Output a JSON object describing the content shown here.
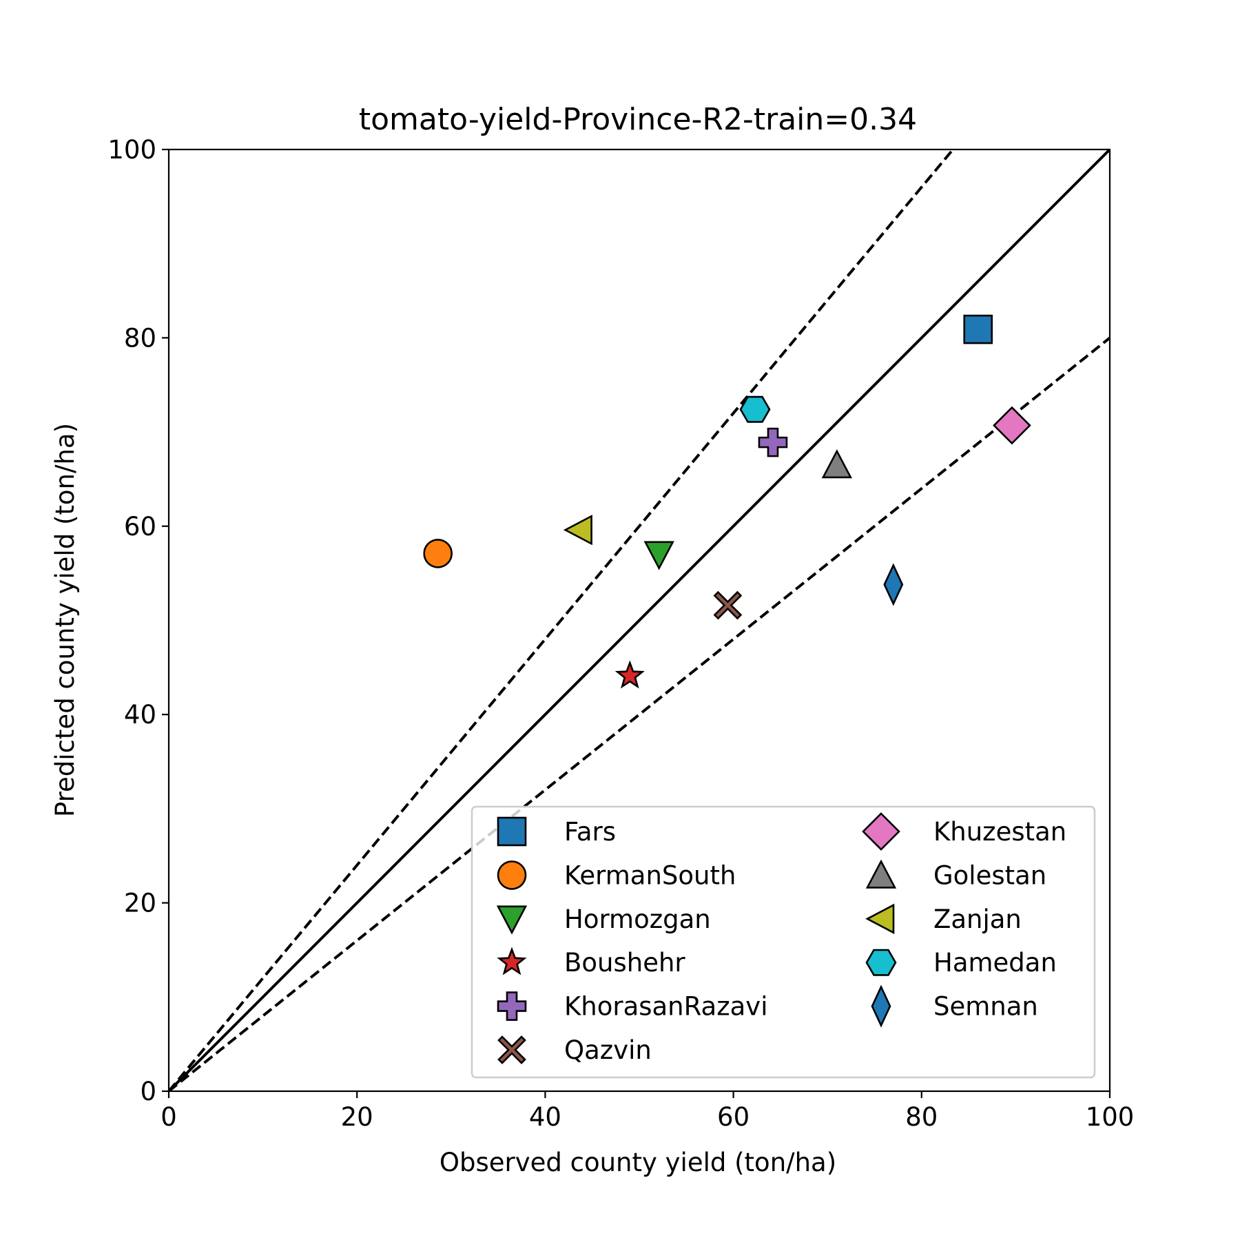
{
  "chart_data": {
    "type": "scatter",
    "title": "tomato-yield-Province-R2-train=0.34",
    "xlabel": "Observed county yield (ton/ha)",
    "ylabel": "Predicted county yield (ton/ha)",
    "xlim": [
      0,
      100
    ],
    "ylim": [
      0,
      100
    ],
    "xticks": [
      "0",
      "20",
      "40",
      "60",
      "80",
      "100"
    ],
    "yticks": [
      "0",
      "20",
      "40",
      "60",
      "80",
      "100"
    ],
    "grid": false,
    "legend_position": "lower-right",
    "legend_columns": 2,
    "reference_lines": [
      {
        "style": "solid",
        "slope": 1.0
      },
      {
        "style": "dashed",
        "slope": 1.2
      },
      {
        "style": "dashed",
        "slope": 0.8
      }
    ],
    "series": [
      {
        "name": "Fars",
        "x": 86.0,
        "y": 80.9,
        "marker": "square",
        "color": "#1f77b4"
      },
      {
        "name": "KermanSouth",
        "x": 28.6,
        "y": 57.1,
        "marker": "circle",
        "color": "#ff7f0e"
      },
      {
        "name": "Hormozgan",
        "x": 52.1,
        "y": 57.0,
        "marker": "triangle-down",
        "color": "#2ca02c"
      },
      {
        "name": "Boushehr",
        "x": 49.0,
        "y": 44.1,
        "marker": "star",
        "color": "#d62728"
      },
      {
        "name": "KhorasanRazavi",
        "x": 64.2,
        "y": 68.9,
        "marker": "plus",
        "color": "#9467bd"
      },
      {
        "name": "Qazvin",
        "x": 59.4,
        "y": 51.6,
        "marker": "x",
        "color": "#8c564b"
      },
      {
        "name": "Khuzestan",
        "x": 89.6,
        "y": 70.7,
        "marker": "diamond",
        "color": "#e377c2"
      },
      {
        "name": "Golestan",
        "x": 71.0,
        "y": 66.5,
        "marker": "triangle-up",
        "color": "#7f7f7f"
      },
      {
        "name": "Zanjan",
        "x": 43.6,
        "y": 59.6,
        "marker": "triangle-left",
        "color": "#bcbd22"
      },
      {
        "name": "Hamedan",
        "x": 62.3,
        "y": 72.4,
        "marker": "hexagon",
        "color": "#17becf"
      },
      {
        "name": "Semnan",
        "x": 77.0,
        "y": 53.8,
        "marker": "thin-diamond",
        "color": "#1f77b4"
      }
    ]
  }
}
